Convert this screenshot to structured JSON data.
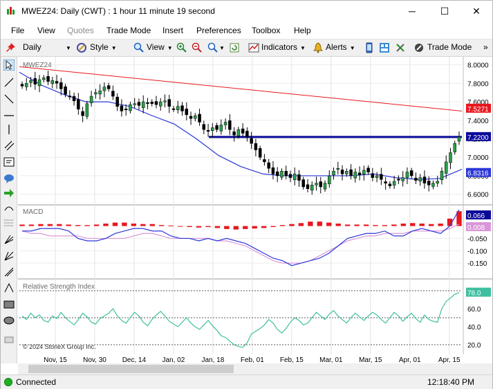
{
  "window": {
    "title": "MWEZ24: Daily (CWT) : 1 hour 11 minute 19 second",
    "minimize": "─",
    "maximize": "☐",
    "close": "✕"
  },
  "menu": [
    "File",
    "View",
    "Quotes",
    "Trade Mode",
    "Insert",
    "Preferences",
    "Toolbox",
    "Help"
  ],
  "toolbar": {
    "period": "Daily",
    "style": "Style",
    "view": "View",
    "indicators": "Indicators",
    "alerts": "Alerts",
    "trade_mode": "Trade Mode",
    "more": "»"
  },
  "status": {
    "connection": "Connected",
    "time": "12:18:40 PM"
  },
  "chart_data": [
    {
      "type": "candlestick",
      "title": "MWEZ24",
      "y_ticks": [
        "8.0000",
        "7.8000",
        "7.6000",
        "7.4000",
        "7.2000",
        "7.0000",
        "6.8000",
        "6.6000"
      ],
      "ylim": [
        6.5,
        8.05
      ],
      "price_badges": [
        {
          "label": "7.5271",
          "value": 7.5271,
          "color": "#e8171f"
        },
        {
          "label": "7.2200",
          "value": 7.22,
          "color": "#0a0a9a"
        },
        {
          "label": "6.8316",
          "value": 6.8316,
          "color": "#2b36d9"
        }
      ],
      "horizontal_line": 7.22,
      "closes": [
        7.77,
        7.8,
        7.83,
        7.79,
        7.84,
        7.86,
        7.82,
        7.83,
        7.8,
        7.74,
        7.68,
        7.66,
        7.61,
        7.52,
        7.45,
        7.58,
        7.66,
        7.7,
        7.72,
        7.76,
        7.74,
        7.66,
        7.55,
        7.5,
        7.52,
        7.57,
        7.58,
        7.56,
        7.6,
        7.59,
        7.58,
        7.57,
        7.6,
        7.61,
        7.55,
        7.52,
        7.55,
        7.5,
        7.46,
        7.42,
        7.45,
        7.38,
        7.3,
        7.28,
        7.32,
        7.3,
        7.35,
        7.38,
        7.3,
        7.24,
        7.3,
        7.26,
        7.22,
        7.15,
        7.08,
        7.0,
        6.95,
        6.88,
        6.82,
        6.8,
        6.85,
        6.8,
        6.78,
        6.82,
        6.75,
        6.68,
        6.66,
        6.7,
        6.72,
        6.68,
        6.72,
        6.8,
        6.85,
        6.88,
        6.82,
        6.85,
        6.8,
        6.84,
        6.81,
        6.86,
        6.84,
        6.78,
        6.8,
        6.76,
        6.72,
        6.69,
        6.74,
        6.76,
        6.78,
        6.84,
        6.8,
        6.75,
        6.78,
        6.72,
        6.7,
        6.72,
        6.74,
        6.85,
        6.95,
        7.05,
        7.15,
        7.22
      ],
      "ma_red": {
        "start": 7.98,
        "end": 7.5
      },
      "ma_blue": [
        7.92,
        7.78,
        7.68,
        7.6,
        7.6,
        7.55,
        7.45,
        7.36,
        7.2,
        7.02,
        6.9,
        6.82,
        6.8,
        6.8,
        6.8,
        6.8,
        6.82,
        6.78,
        6.76,
        6.77,
        6.87
      ],
      "x_labels": [
        "Nov, 15",
        "Nov, 30",
        "Dec, 14",
        "Jan, 02",
        "Jan, 18",
        "Feb, 01",
        "Feb, 15",
        "Mar, 01",
        "Mar, 15",
        "Apr, 01",
        "Apr, 15"
      ]
    },
    {
      "type": "bar+line",
      "title": "MACD",
      "y_ticks": [
        "-0.050",
        "-0.100",
        "-0.150"
      ],
      "ylim": [
        -0.2,
        0.08
      ],
      "badges": [
        {
          "label": "0.066",
          "value": 0.066,
          "color": "#0a0a9a"
        },
        {
          "label": "0.008",
          "value": 0.008,
          "color": "#d996d9"
        }
      ],
      "macd": [
        -0.02,
        -0.02,
        -0.01,
        -0.01,
        -0.01,
        -0.02,
        -0.05,
        -0.06,
        -0.06,
        -0.05,
        -0.03,
        -0.02,
        -0.01,
        -0.01,
        -0.02,
        -0.02,
        -0.04,
        -0.05,
        -0.05,
        -0.06,
        -0.05,
        -0.06,
        -0.05,
        -0.06,
        -0.07,
        -0.09,
        -0.11,
        -0.13,
        -0.14,
        -0.16,
        -0.15,
        -0.14,
        -0.13,
        -0.11,
        -0.08,
        -0.05,
        -0.04,
        -0.03,
        -0.03,
        -0.02,
        -0.04,
        -0.04,
        -0.02,
        -0.01,
        -0.02,
        -0.03,
        0.0,
        0.066
      ],
      "signal": [
        -0.02,
        -0.03,
        -0.03,
        -0.04,
        -0.04,
        -0.04,
        -0.04,
        -0.05,
        -0.05,
        -0.05,
        -0.05,
        -0.05,
        -0.04,
        -0.03,
        -0.03,
        -0.04,
        -0.05,
        -0.05,
        -0.05,
        -0.05,
        -0.05,
        -0.06,
        -0.06,
        -0.07,
        -0.08,
        -0.1,
        -0.12,
        -0.14,
        -0.15,
        -0.15,
        -0.15,
        -0.14,
        -0.12,
        -0.1,
        -0.08,
        -0.06,
        -0.05,
        -0.04,
        -0.04,
        -0.03,
        -0.03,
        -0.03,
        -0.02,
        -0.02,
        -0.02,
        -0.02,
        -0.01,
        0.008
      ],
      "histogram": [
        0.006,
        0.006,
        0.008,
        0.008,
        0.008,
        0.006,
        0.004,
        0.004,
        0.006,
        0.01,
        0.014,
        0.014,
        0.01,
        0.008,
        0.008,
        0.004,
        0.002,
        -0.002,
        -0.004,
        -0.006,
        -0.004,
        -0.008,
        -0.012,
        -0.014,
        -0.012,
        -0.01,
        -0.008,
        -0.004,
        0.004,
        0.008,
        0.012,
        0.018,
        0.018,
        0.014,
        0.01,
        0.006,
        0.006,
        0.006,
        0.004,
        0.004,
        0.006,
        0.01,
        0.012,
        0.01,
        0.008,
        0.01,
        0.03,
        0.06
      ]
    },
    {
      "type": "line",
      "title": "Relative Strength Index",
      "y_ticks": [
        "78.0",
        "60.0",
        "40.0",
        "20.0"
      ],
      "ylim": [
        10,
        90
      ],
      "levels": [
        80,
        50,
        20
      ],
      "badge": {
        "label": "78.0",
        "value": 78.0,
        "color": "#3dbfa0"
      },
      "values": [
        52,
        48,
        55,
        50,
        53,
        47,
        45,
        52,
        49,
        56,
        50,
        46,
        42,
        48,
        55,
        51,
        45,
        43,
        49,
        52,
        55,
        60,
        52,
        47,
        44,
        50,
        56,
        52,
        45,
        41,
        48,
        53,
        57,
        52,
        46,
        43,
        40,
        45,
        50,
        44,
        40,
        37,
        42,
        47,
        41,
        36,
        30,
        28,
        24,
        20,
        18,
        17,
        22,
        32,
        35,
        38,
        42,
        48,
        44,
        37,
        33,
        38,
        45,
        50,
        47,
        42,
        44,
        50,
        56,
        52,
        48,
        54,
        58,
        52,
        48,
        44,
        50,
        55,
        51,
        47,
        52,
        56,
        53,
        48,
        44,
        50,
        56,
        52,
        46,
        51,
        55,
        49,
        45,
        53,
        48,
        46,
        45,
        60,
        68,
        72,
        76,
        78
      ],
      "x_labels": [
        "Nov, 15",
        "Nov, 30",
        "Dec, 14",
        "Jan, 02",
        "Jan, 18",
        "Feb, 01",
        "Feb, 15",
        "Mar, 01",
        "Mar, 15",
        "Apr, 01",
        "Apr, 15"
      ],
      "copyright": "© 2024 StoneX Group Inc."
    }
  ]
}
